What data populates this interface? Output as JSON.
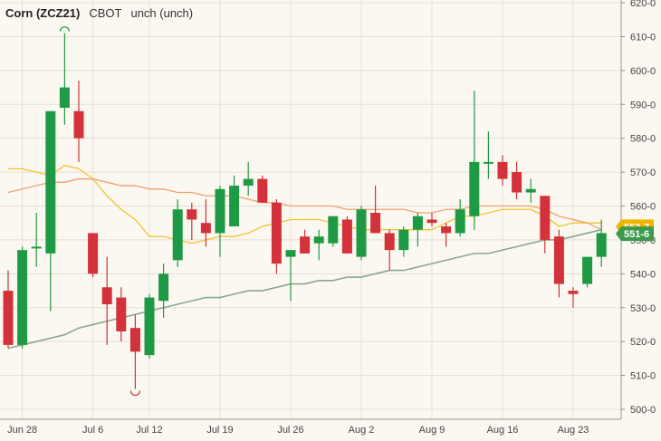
{
  "header": {
    "symbol": "Corn (ZCZ21)",
    "exchange": "CBOT",
    "change": "unch (unch)"
  },
  "price_tags": [
    {
      "text": "553-7",
      "color": "#f0b400"
    },
    {
      "text": "551-6",
      "color": "#3d9a4a"
    }
  ],
  "colors": {
    "background": "#fbf8f1",
    "up": "#1f9a44",
    "down": "#d3323a",
    "ma_fast": "#f2c431",
    "ma_mid": "#f0a06c",
    "ma_slow": "#88a88e",
    "grid": "#e3dfd6"
  },
  "chart_data": {
    "type": "candlestick",
    "title": "Corn (ZCZ21)",
    "ylim": [
      500,
      620
    ],
    "y_ticks": [
      "500-0",
      "510-0",
      "520-0",
      "530-0",
      "540-0",
      "550-0",
      "560-0",
      "570-0",
      "580-0",
      "590-0",
      "600-0",
      "610-0",
      "620-0"
    ],
    "x_ticks": [
      {
        "label": "Jun 28",
        "index": 1
      },
      {
        "label": "Jul 6",
        "index": 6
      },
      {
        "label": "Jul 12",
        "index": 10
      },
      {
        "label": "Jul 19",
        "index": 15
      },
      {
        "label": "Jul 26",
        "index": 20
      },
      {
        "label": "Aug 2",
        "index": 25
      },
      {
        "label": "Aug 9",
        "index": 30
      },
      {
        "label": "Aug 16",
        "index": 35
      },
      {
        "label": "Aug 23",
        "index": 40
      }
    ],
    "grid": true,
    "series": [
      {
        "date": "Jun 25",
        "open": 535,
        "high": 541,
        "low": 518,
        "close": 519
      },
      {
        "date": "Jun 28",
        "open": 519,
        "high": 548,
        "low": 518,
        "close": 547
      },
      {
        "date": "Jun 29",
        "open": 548,
        "high": 558,
        "low": 542,
        "close": 548
      },
      {
        "date": "Jun 30",
        "open": 546,
        "high": 588,
        "low": 529,
        "close": 588
      },
      {
        "date": "Jul 1",
        "open": 589,
        "high": 611,
        "low": 584,
        "close": 595
      },
      {
        "date": "Jul 2",
        "open": 588,
        "high": 597,
        "low": 573,
        "close": 580
      },
      {
        "date": "Jul 6",
        "open": 552,
        "high": 552,
        "low": 539,
        "close": 540
      },
      {
        "date": "Jul 7",
        "open": 536,
        "high": 545,
        "low": 519,
        "close": 531
      },
      {
        "date": "Jul 8",
        "open": 533,
        "high": 536,
        "low": 520,
        "close": 523
      },
      {
        "date": "Jul 9",
        "open": 524,
        "high": 528,
        "low": 506,
        "close": 517
      },
      {
        "date": "Jul 12",
        "open": 516,
        "high": 534,
        "low": 515,
        "close": 533
      },
      {
        "date": "Jul 13",
        "open": 532,
        "high": 543,
        "low": 527,
        "close": 540
      },
      {
        "date": "Jul 14",
        "open": 544,
        "high": 562,
        "low": 542,
        "close": 559
      },
      {
        "date": "Jul 15",
        "open": 559,
        "high": 561,
        "low": 550,
        "close": 556
      },
      {
        "date": "Jul 16",
        "open": 555,
        "high": 562,
        "low": 548,
        "close": 552
      },
      {
        "date": "Jul 19",
        "open": 552,
        "high": 566,
        "low": 545,
        "close": 565
      },
      {
        "date": "Jul 20",
        "open": 554,
        "high": 569,
        "low": 554,
        "close": 566
      },
      {
        "date": "Jul 21",
        "open": 566,
        "high": 573,
        "low": 563,
        "close": 568
      },
      {
        "date": "Jul 22",
        "open": 568,
        "high": 569,
        "low": 561,
        "close": 561
      },
      {
        "date": "Jul 23",
        "open": 561,
        "high": 562,
        "low": 540,
        "close": 543
      },
      {
        "date": "Jul 26",
        "open": 545,
        "high": 547,
        "low": 532,
        "close": 547
      },
      {
        "date": "Jul 27",
        "open": 551,
        "high": 553,
        "low": 546,
        "close": 546
      },
      {
        "date": "Jul 28",
        "open": 549,
        "high": 553,
        "low": 544,
        "close": 551
      },
      {
        "date": "Jul 29",
        "open": 549,
        "high": 557,
        "low": 548,
        "close": 557
      },
      {
        "date": "Jul 30",
        "open": 556,
        "high": 557,
        "low": 546,
        "close": 546
      },
      {
        "date": "Aug 2",
        "open": 545,
        "high": 560,
        "low": 544,
        "close": 559
      },
      {
        "date": "Aug 3",
        "open": 558,
        "high": 566,
        "low": 552,
        "close": 552
      },
      {
        "date": "Aug 4",
        "open": 552,
        "high": 553,
        "low": 541,
        "close": 547
      },
      {
        "date": "Aug 5",
        "open": 547,
        "high": 554,
        "low": 545,
        "close": 553
      },
      {
        "date": "Aug 6",
        "open": 553,
        "high": 558,
        "low": 548,
        "close": 557
      },
      {
        "date": "Aug 9",
        "open": 556,
        "high": 558,
        "low": 554,
        "close": 555
      },
      {
        "date": "Aug 10",
        "open": 554,
        "high": 555,
        "low": 548,
        "close": 552
      },
      {
        "date": "Aug 11",
        "open": 552,
        "high": 562,
        "low": 551,
        "close": 559
      },
      {
        "date": "Aug 12",
        "open": 557,
        "high": 594,
        "low": 553,
        "close": 573
      },
      {
        "date": "Aug 13",
        "open": 573,
        "high": 582,
        "low": 568,
        "close": 573
      },
      {
        "date": "Aug 16",
        "open": 573,
        "high": 575,
        "low": 566,
        "close": 568
      },
      {
        "date": "Aug 17",
        "open": 570,
        "high": 573,
        "low": 562,
        "close": 564
      },
      {
        "date": "Aug 18",
        "open": 564,
        "high": 568,
        "low": 561,
        "close": 565
      },
      {
        "date": "Aug 19",
        "open": 563,
        "high": 563,
        "low": 546,
        "close": 550
      },
      {
        "date": "Aug 20",
        "open": 551,
        "high": 553,
        "low": 533,
        "close": 537
      },
      {
        "date": "Aug 23",
        "open": 535,
        "high": 536,
        "low": 530,
        "close": 534
      },
      {
        "date": "Aug 24",
        "open": 537,
        "high": 545,
        "low": 536,
        "close": 545
      },
      {
        "date": "Aug 25",
        "open": 545,
        "high": 556,
        "low": 542,
        "close": 552
      }
    ],
    "moving_averages": [
      {
        "color": "#f2c431",
        "values": [
          571,
          571,
          570,
          569,
          572,
          571,
          568,
          563,
          559,
          556,
          551,
          551,
          550,
          549,
          550,
          551,
          551,
          552,
          554,
          555,
          556,
          556,
          556,
          555,
          554,
          553,
          553,
          553,
          553,
          553,
          553,
          555,
          557,
          557,
          558,
          559,
          559,
          559,
          557,
          554,
          555,
          555,
          555
        ]
      },
      {
        "color": "#f0a06c",
        "values": [
          564,
          565,
          566,
          567,
          567,
          568,
          568,
          567,
          566,
          566,
          565,
          565,
          564,
          564,
          563,
          563,
          563,
          562,
          561,
          561,
          560,
          560,
          560,
          560,
          559,
          559,
          559,
          559,
          559,
          558,
          558,
          559,
          559,
          560,
          560,
          560,
          560,
          560,
          559,
          557,
          556,
          555,
          553
        ]
      },
      {
        "color": "#88a88e",
        "values": [
          518,
          519,
          520,
          521,
          522,
          524,
          525,
          526,
          527,
          528,
          529,
          530,
          531,
          532,
          533,
          533,
          534,
          535,
          535,
          536,
          537,
          537,
          538,
          538,
          539,
          539,
          540,
          541,
          541,
          542,
          543,
          544,
          545,
          546,
          546,
          547,
          548,
          549,
          550,
          550,
          551,
          552,
          553
        ]
      }
    ]
  }
}
